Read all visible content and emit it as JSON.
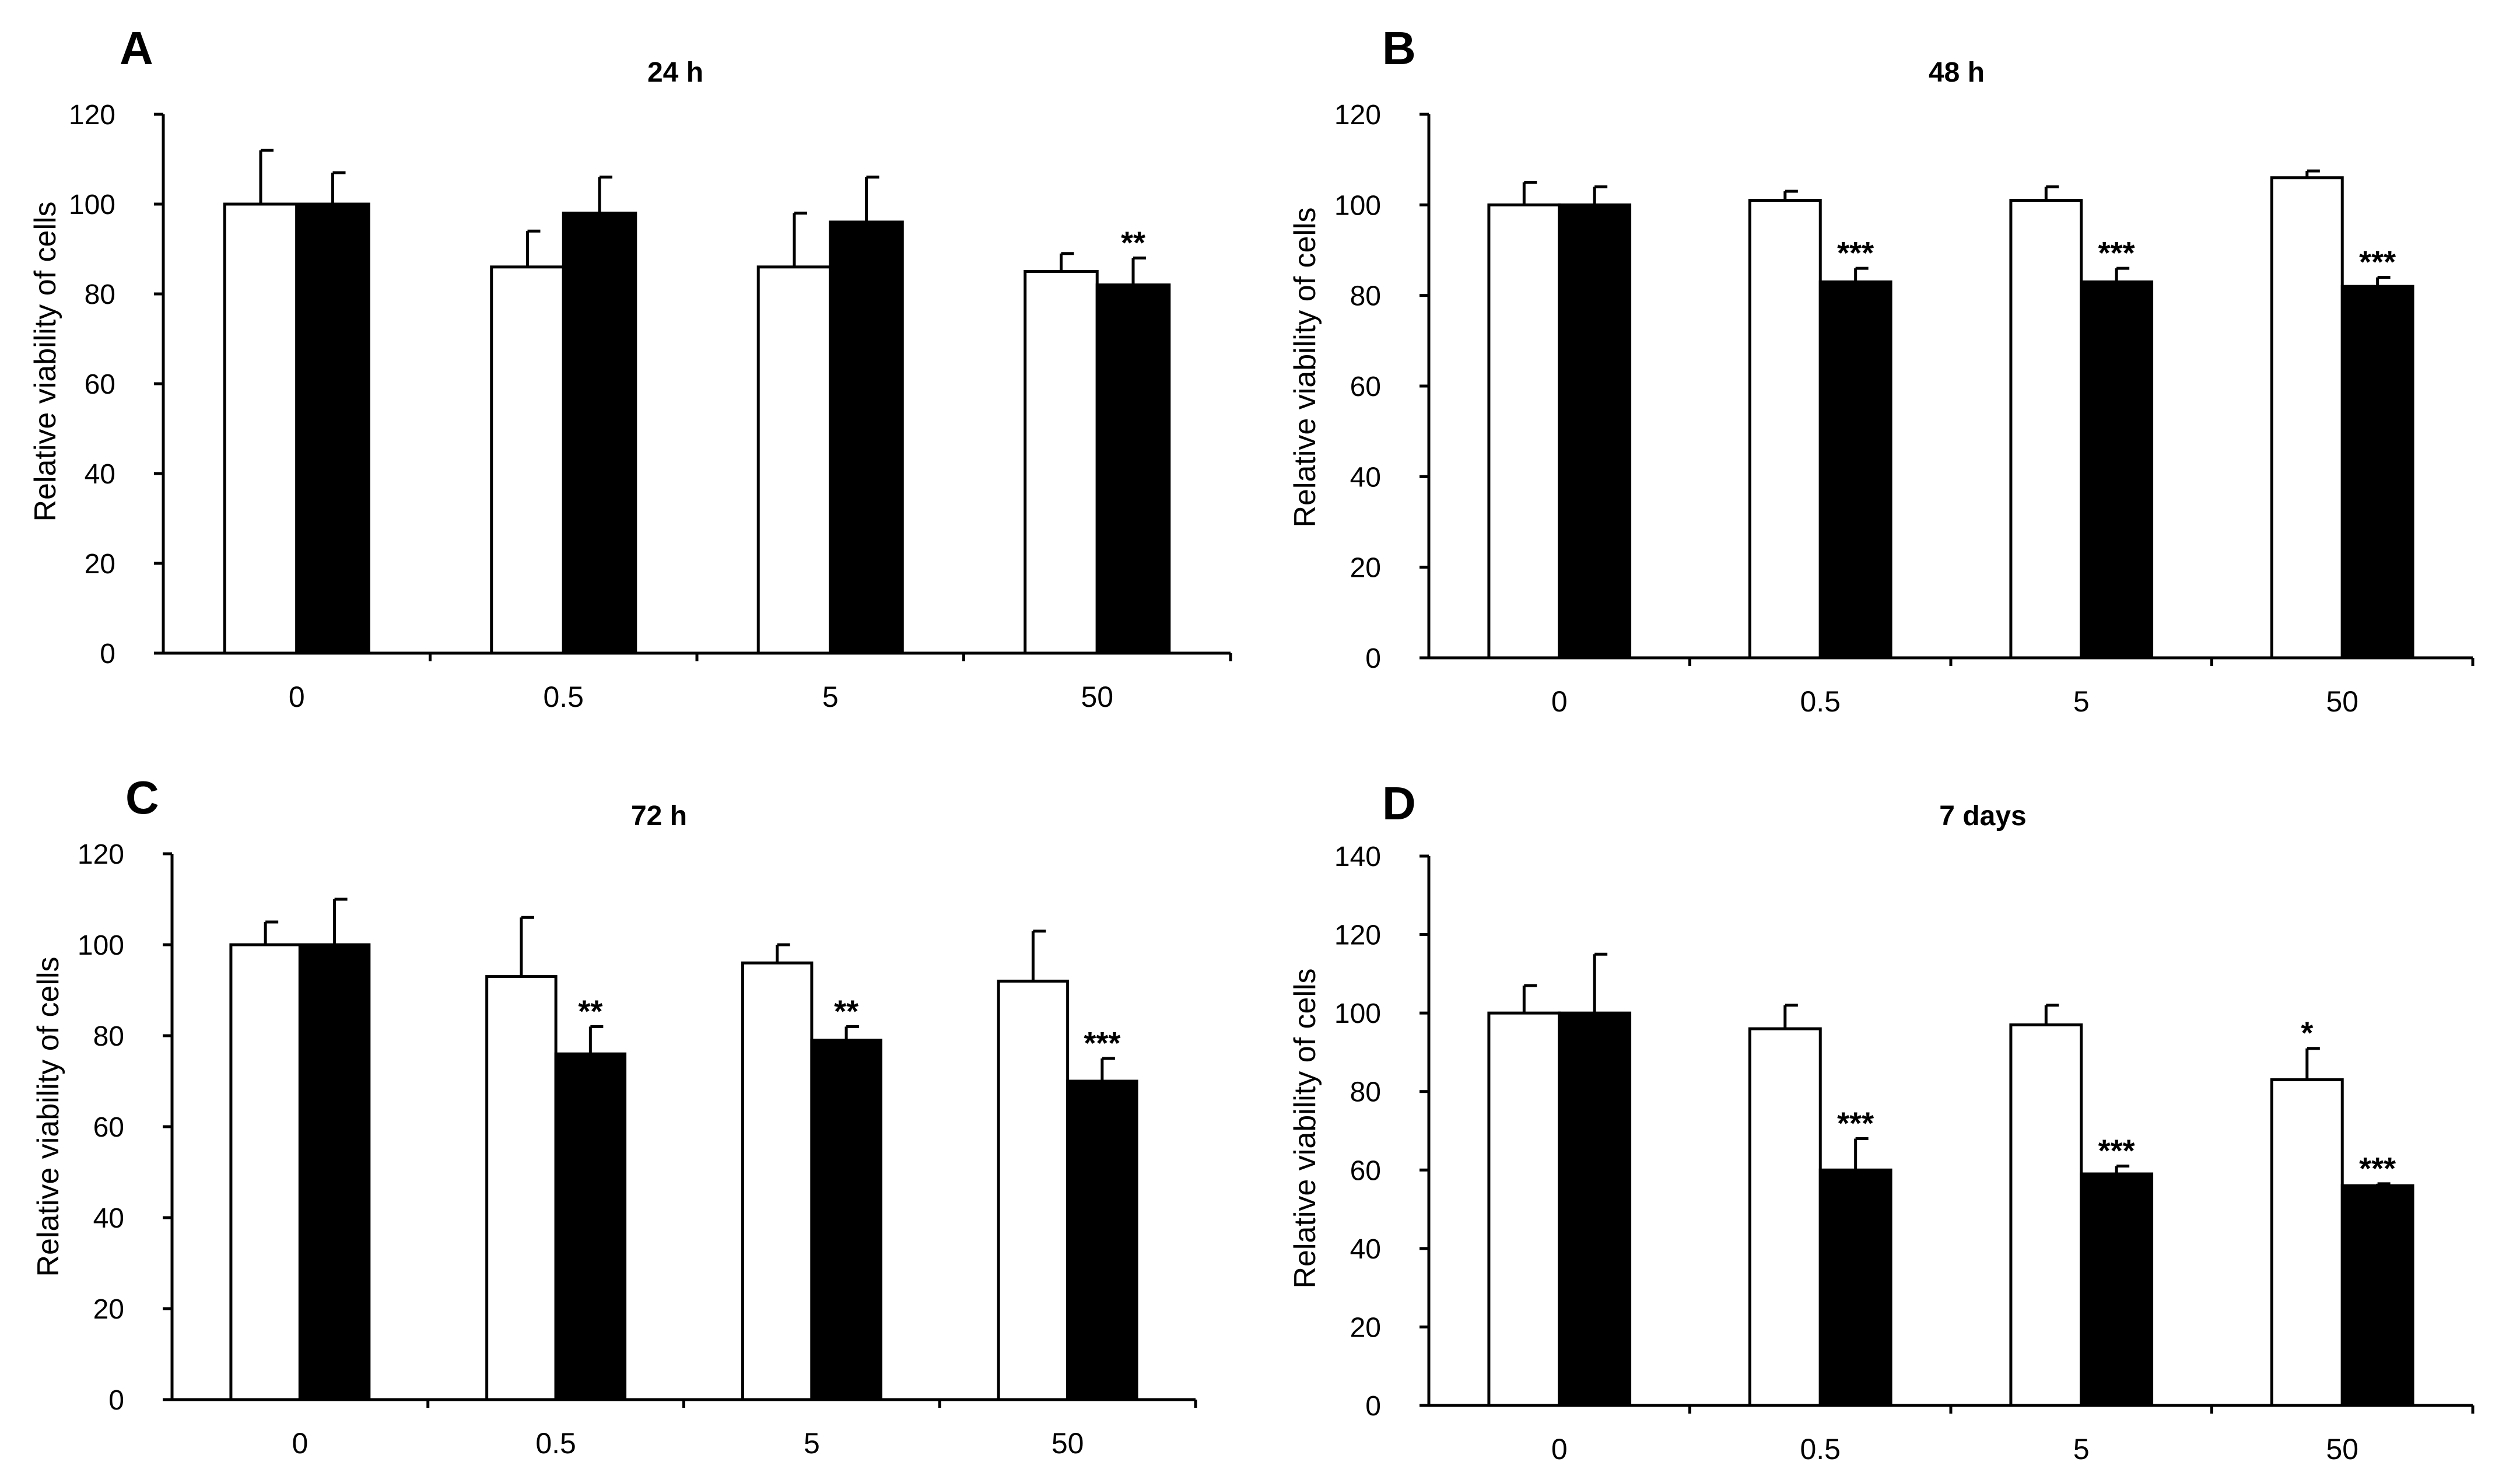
{
  "chart_data": [
    {
      "panel": "A",
      "type": "bar",
      "title": "24 h",
      "xlabel": "",
      "ylabel": "Relative viability of cells",
      "ylim": [
        0,
        120
      ],
      "yticks": [
        "0",
        "20",
        "40",
        "60",
        "80",
        "100",
        "120"
      ],
      "categories": [
        "0",
        "0.5",
        "5",
        "50"
      ],
      "series": [
        {
          "name": "white",
          "color": "#ffffff",
          "values": [
            100,
            86,
            86,
            85
          ],
          "errors": [
            12,
            8,
            12,
            4
          ]
        },
        {
          "name": "black",
          "color": "#000000",
          "values": [
            100,
            98,
            96,
            82
          ],
          "errors": [
            7,
            8,
            10,
            6
          ]
        }
      ],
      "annotations": [
        {
          "series": "black",
          "category": "50",
          "text": "**"
        }
      ]
    },
    {
      "panel": "B",
      "type": "bar",
      "title": "48 h",
      "xlabel": "",
      "ylabel": "Relative viability of cells",
      "ylim": [
        0,
        120
      ],
      "yticks": [
        "0",
        "20",
        "40",
        "60",
        "80",
        "100",
        "120"
      ],
      "categories": [
        "0",
        "0.5",
        "5",
        "50"
      ],
      "series": [
        {
          "name": "white",
          "color": "#ffffff",
          "values": [
            100,
            101,
            101,
            106
          ],
          "errors": [
            5,
            2,
            3,
            1.5
          ]
        },
        {
          "name": "black",
          "color": "#000000",
          "values": [
            100,
            83,
            83,
            82
          ],
          "errors": [
            4,
            3,
            3,
            2
          ]
        }
      ],
      "annotations": [
        {
          "series": "black",
          "category": "0.5",
          "text": "***"
        },
        {
          "series": "black",
          "category": "5",
          "text": "***"
        },
        {
          "series": "black",
          "category": "50",
          "text": "***"
        }
      ]
    },
    {
      "panel": "C",
      "type": "bar",
      "title": "72 h",
      "xlabel": "",
      "ylabel": "Relative viability of cells",
      "ylim": [
        0,
        120
      ],
      "yticks": [
        "0",
        "20",
        "40",
        "60",
        "80",
        "100",
        "120"
      ],
      "categories": [
        "0",
        "0.5",
        "5",
        "50"
      ],
      "series": [
        {
          "name": "white",
          "color": "#ffffff",
          "values": [
            100,
            93,
            96,
            92
          ],
          "errors": [
            5,
            13,
            4,
            11
          ]
        },
        {
          "name": "black",
          "color": "#000000",
          "values": [
            100,
            76,
            79,
            70
          ],
          "errors": [
            10,
            6,
            3,
            5
          ]
        }
      ],
      "annotations": [
        {
          "series": "black",
          "category": "0.5",
          "text": "**"
        },
        {
          "series": "black",
          "category": "5",
          "text": "**"
        },
        {
          "series": "black",
          "category": "50",
          "text": "***"
        }
      ]
    },
    {
      "panel": "D",
      "type": "bar",
      "title": "7 days",
      "xlabel": "",
      "ylabel": "Relative viability of cells",
      "ylim": [
        0,
        140
      ],
      "yticks": [
        "0",
        "20",
        "40",
        "60",
        "80",
        "100",
        "120",
        "140"
      ],
      "categories": [
        "0",
        "0.5",
        "5",
        "50"
      ],
      "series": [
        {
          "name": "white",
          "color": "#ffffff",
          "values": [
            100,
            96,
            97,
            83
          ],
          "errors": [
            7,
            6,
            5,
            8
          ]
        },
        {
          "name": "black",
          "color": "#000000",
          "values": [
            100,
            60,
            59,
            56
          ],
          "errors": [
            15,
            8,
            2,
            0.5
          ]
        }
      ],
      "annotations": [
        {
          "series": "white",
          "category": "50",
          "text": "*"
        },
        {
          "series": "black",
          "category": "0.5",
          "text": "***"
        },
        {
          "series": "black",
          "category": "5",
          "text": "***"
        },
        {
          "series": "black",
          "category": "50",
          "text": "***"
        }
      ]
    }
  ]
}
